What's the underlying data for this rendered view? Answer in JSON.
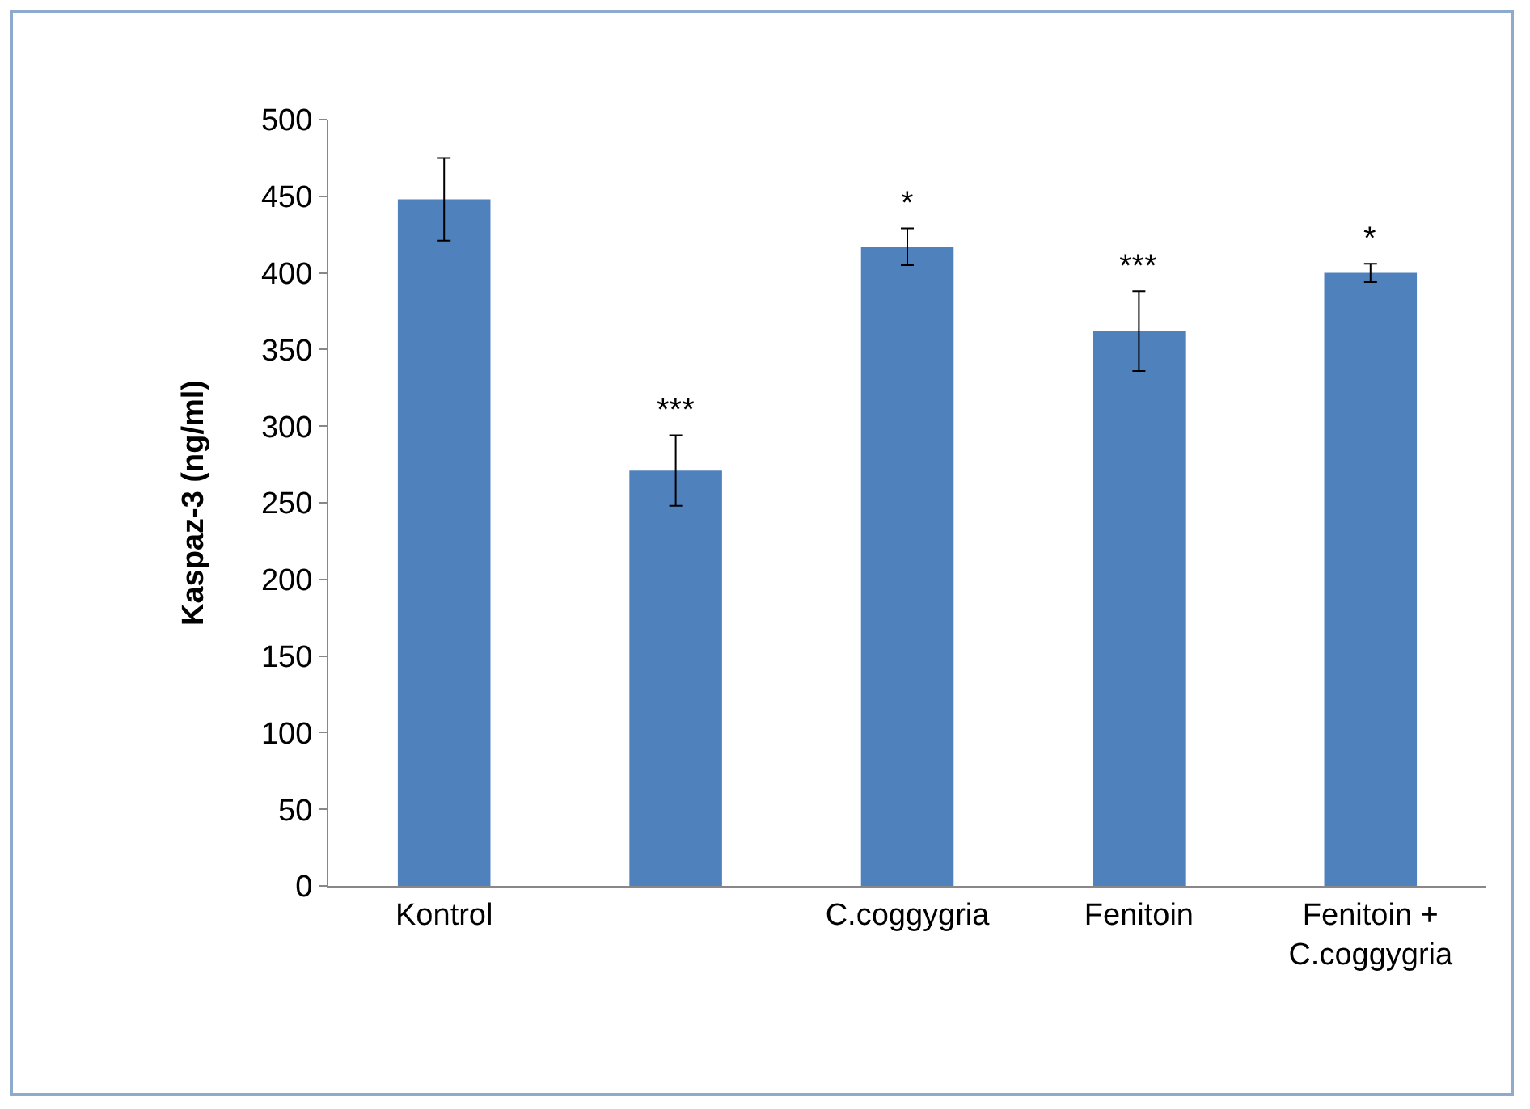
{
  "chart_data": {
    "type": "bar",
    "ylabel": "Kaspaz-3 (ng/ml)",
    "categories": [
      "Kontrol",
      null,
      "C.coggygria",
      "Fenitoin",
      "Fenitoin + C.coggygria"
    ],
    "values": [
      448,
      271,
      417,
      362,
      400
    ],
    "errors": [
      27,
      23,
      12,
      26,
      6
    ],
    "color": "#4f81bd",
    "value_labels": [
      null,
      "***",
      "*",
      "***",
      "*"
    ],
    "ylim": [
      0,
      500
    ],
    "yticks": [
      0,
      50,
      100,
      150,
      200,
      250,
      300,
      350,
      400,
      450,
      500
    ],
    "grid": false
  }
}
